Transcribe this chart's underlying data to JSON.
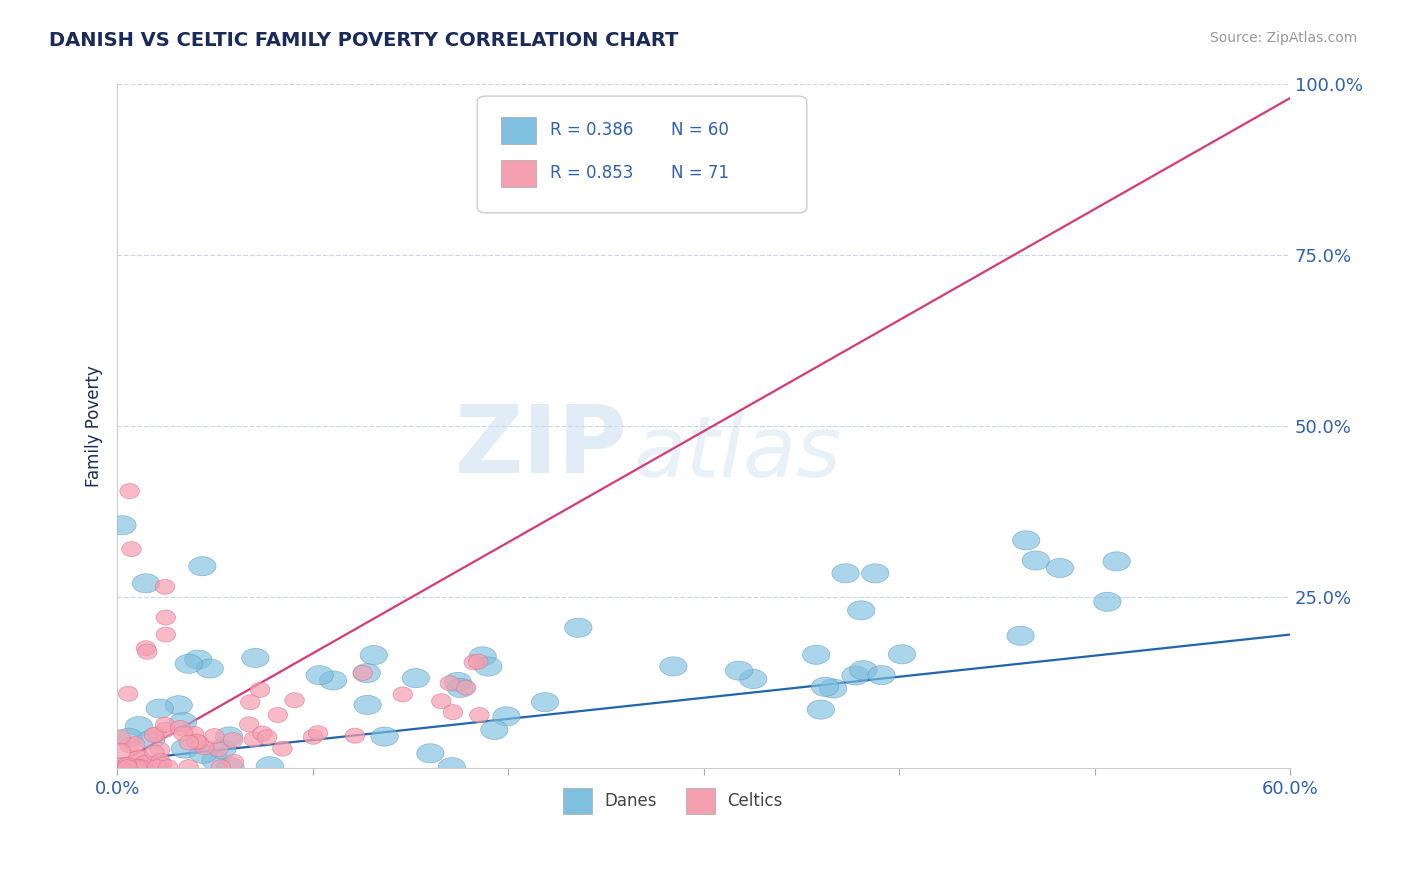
{
  "title": "DANISH VS CELTIC FAMILY POVERTY CORRELATION CHART",
  "source": "Source: ZipAtlas.com",
  "ylabel": "Family Poverty",
  "xlim": [
    0,
    0.6
  ],
  "ylim": [
    0,
    1.0
  ],
  "xticks": [
    0.0,
    0.1,
    0.2,
    0.3,
    0.4,
    0.5,
    0.6
  ],
  "xticklabels": [
    "0.0%",
    "",
    "",
    "",
    "",
    "",
    "60.0%"
  ],
  "yticks": [
    0.0,
    0.25,
    0.5,
    0.75,
    1.0
  ],
  "yticklabels": [
    "",
    "25.0%",
    "50.0%",
    "75.0%",
    "100.0%"
  ],
  "danes_color": "#7fbfdf",
  "celtics_color": "#f4a0b0",
  "danes_edge_color": "#5a9abf",
  "celtics_edge_color": "#e07090",
  "danes_line_color": "#2166ac",
  "celtics_line_color": "#d63a7a",
  "danes_R": 0.386,
  "danes_N": 60,
  "celtics_R": 0.853,
  "celtics_N": 71,
  "watermark_zip": "ZIP",
  "watermark_atlas": "atlas",
  "background_color": "#ffffff",
  "grid_color": "#c8d8e8",
  "title_color": "#1a2a5a",
  "axis_label_color": "#1a2a5a",
  "tick_label_color": "#3060b0",
  "legend_text_color": "#3060b0",
  "dane_line_x0": 0.0,
  "dane_line_y0": 0.01,
  "dane_line_x1": 0.6,
  "dane_line_y1": 0.195,
  "celtic_line_x0": 0.0,
  "celtic_line_y0": 0.005,
  "celtic_line_x1": 0.6,
  "celtic_line_y1": 0.98
}
